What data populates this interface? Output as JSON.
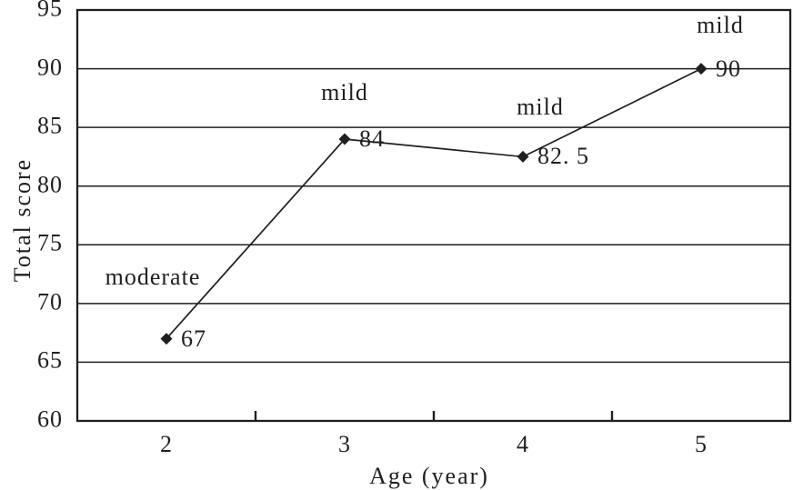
{
  "chart_data": {
    "type": "line",
    "title": "",
    "xlabel": "Age (year)",
    "ylabel": "Total score",
    "categories": [
      "2",
      "3",
      "4",
      "5"
    ],
    "x_values": [
      2,
      3,
      4,
      5
    ],
    "series": [
      {
        "name": "Total score",
        "values": [
          67,
          84,
          82.5,
          90
        ],
        "point_labels": [
          "67",
          "84",
          "82. 5",
          "90"
        ],
        "color": "#1f1f1f",
        "marker": "diamond"
      }
    ],
    "annotations": [
      {
        "point_index": 0,
        "text": "moderate"
      },
      {
        "point_index": 1,
        "text": "mild"
      },
      {
        "point_index": 2,
        "text": "mild"
      },
      {
        "point_index": 3,
        "text": "mild"
      }
    ],
    "ylim": [
      60,
      95
    ],
    "y_ticks": [
      60,
      65,
      70,
      75,
      80,
      85,
      90,
      95
    ],
    "grid": "horizontal-only",
    "legend": "none",
    "axis_color": "#1f1f1f",
    "text_color": "#1f1f1f",
    "background": "#ffffff"
  }
}
